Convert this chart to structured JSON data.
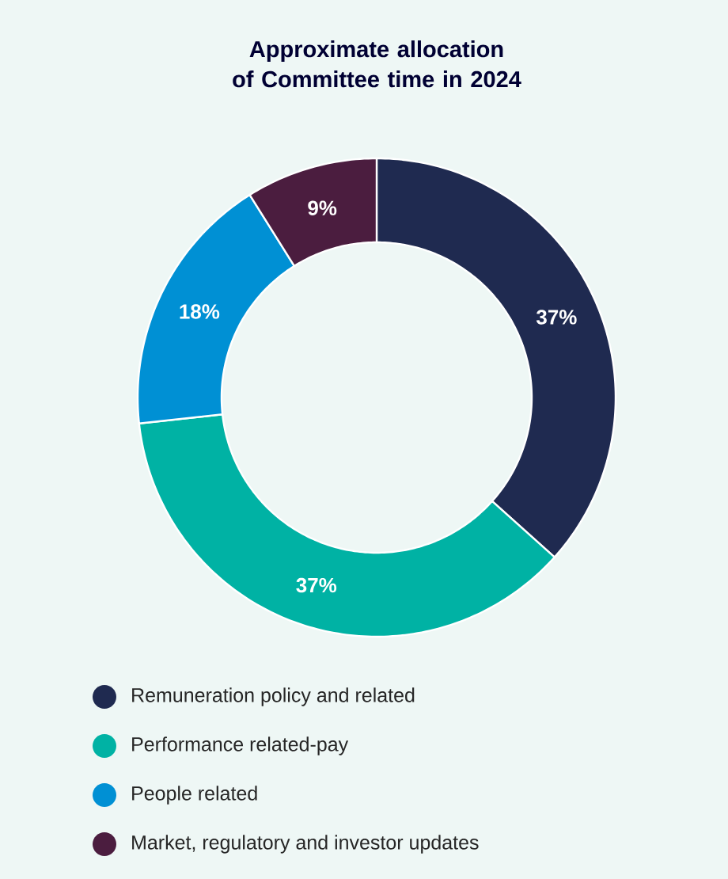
{
  "chart_data": {
    "type": "donut",
    "title": "Approximate allocation\nof Committee time in 2024",
    "categories": [
      "Remuneration policy and related",
      "Performance related-pay",
      "People related",
      "Market, regulatory and investor updates"
    ],
    "values": [
      37,
      37,
      18,
      9
    ],
    "colors": [
      "#1f2a50",
      "#00b2a4",
      "#0090d4",
      "#4b1d3f"
    ],
    "value_labels": [
      "37%",
      "37%",
      "18%",
      "9%"
    ],
    "legend": "bottom"
  }
}
